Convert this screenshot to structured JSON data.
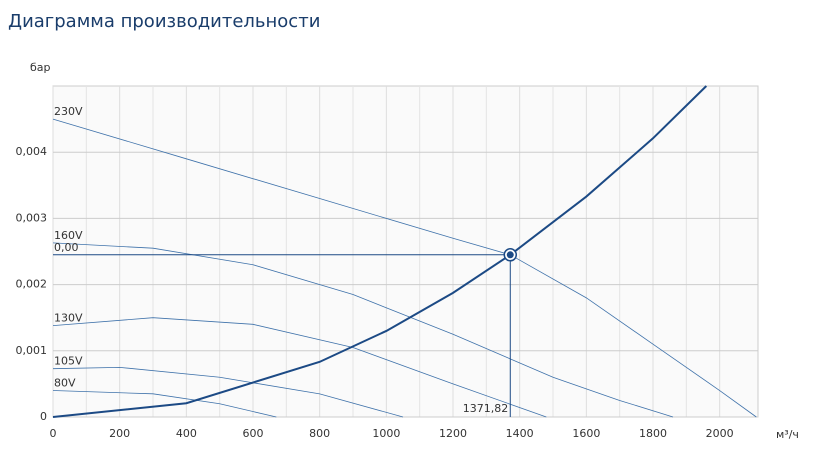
{
  "chart_data": {
    "type": "line",
    "title": "Диаграмма производительности",
    "y_label": "бар",
    "x_label": "м³/ч",
    "xlim": [
      0,
      2115
    ],
    "ylim": [
      0,
      0.005
    ],
    "xticks": [
      0,
      200,
      400,
      600,
      800,
      1000,
      1200,
      1400,
      1600,
      1800,
      2000
    ],
    "yticks": [
      0,
      {
        "value": 0.001,
        "label": "0,001"
      },
      {
        "value": 0.002,
        "label": "0,002"
      },
      {
        "value": 0.003,
        "label": "0,003"
      },
      {
        "value": 0.004,
        "label": "0,004"
      }
    ],
    "grid": true,
    "series": [
      {
        "name": "230V",
        "color": "#3f72aa",
        "width": 0.8,
        "x": [
          0,
          400,
          800,
          1200,
          1372,
          1600,
          1800,
          2000,
          2110
        ],
        "values": [
          0.0045,
          0.0039,
          0.0033,
          0.0027,
          0.00245,
          0.0018,
          0.0011,
          0.0004,
          0
        ]
      },
      {
        "name": "160V",
        "color": "#3f72aa",
        "width": 0.8,
        "x": [
          0,
          300,
          600,
          900,
          1200,
          1500,
          1700,
          1860
        ],
        "values": [
          0.00263,
          0.00255,
          0.0023,
          0.00185,
          0.00125,
          0.0006,
          0.00025,
          0
        ]
      },
      {
        "name": "130V",
        "color": "#3f72aa",
        "width": 0.8,
        "x": [
          0,
          300,
          600,
          900,
          1200,
          1480
        ],
        "values": [
          0.00138,
          0.0015,
          0.0014,
          0.00105,
          0.0005,
          0
        ]
      },
      {
        "name": "105V",
        "color": "#3f72aa",
        "width": 0.8,
        "x": [
          0,
          200,
          500,
          800,
          1050
        ],
        "values": [
          0.00073,
          0.00075,
          0.0006,
          0.00035,
          0
        ]
      },
      {
        "name": "80V",
        "color": "#3f72aa",
        "width": 0.8,
        "x": [
          0,
          300,
          500,
          670
        ],
        "values": [
          0.0004,
          0.00035,
          0.0002,
          0
        ]
      },
      {
        "color": "#1c4a85",
        "width": 2,
        "x": [
          0,
          400,
          800,
          1000,
          1200,
          1372,
          1600,
          1800,
          1960
        ],
        "values": [
          0,
          0.000208,
          0.000833,
          0.0013,
          0.001875,
          0.00245,
          0.00333,
          0.00421,
          0.005
        ]
      }
    ],
    "operating_point": {
      "x": 1371.82,
      "y": 0.00245,
      "x_label": "1371,82",
      "y_label": "0,00",
      "color": "#1c4a85"
    }
  }
}
